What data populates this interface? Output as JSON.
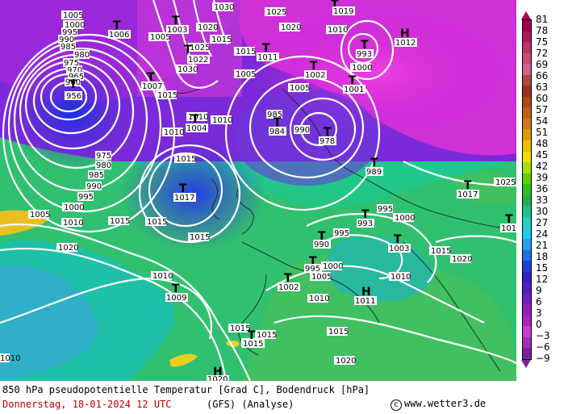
{
  "map": {
    "isobars": [
      {
        "label": "1030"
      },
      {
        "label": "1030"
      },
      {
        "label": "1025"
      },
      {
        "label": "1020"
      },
      {
        "label": "1015"
      },
      {
        "label": "1015"
      },
      {
        "label": "1010"
      },
      {
        "label": "1005"
      },
      {
        "label": "1000"
      },
      {
        "label": "995"
      },
      {
        "label": "990"
      },
      {
        "label": "985"
      },
      {
        "label": "980"
      },
      {
        "label": "975"
      },
      {
        "label": "970"
      },
      {
        "label": "965"
      },
      {
        "label": "960"
      },
      {
        "label": "1005"
      },
      {
        "label": "1000"
      },
      {
        "label": "995"
      },
      {
        "label": "990"
      },
      {
        "label": "985"
      },
      {
        "label": "980"
      },
      {
        "label": "975"
      },
      {
        "label": "1010"
      },
      {
        "label": "1015"
      },
      {
        "label": "1020"
      },
      {
        "label": "1010"
      },
      {
        "label": "1015"
      },
      {
        "label": "1015"
      },
      {
        "label": "1010"
      },
      {
        "label": "1015"
      },
      {
        "label": "1020"
      },
      {
        "label": "1025"
      },
      {
        "label": "1010"
      },
      {
        "label": "1005"
      },
      {
        "label": "1000"
      },
      {
        "label": "995"
      },
      {
        "label": "995"
      },
      {
        "label": "1000"
      },
      {
        "label": "1005"
      },
      {
        "label": "1010"
      },
      {
        "label": "1015"
      },
      {
        "label": "1020"
      },
      {
        "label": "1015"
      },
      {
        "label": "1015"
      },
      {
        "label": "1015"
      },
      {
        "label": "1010"
      },
      {
        "label": "1005"
      },
      {
        "label": "1000"
      },
      {
        "label": "985"
      },
      {
        "label": "990"
      },
      {
        "label": "1010"
      },
      {
        "label": "1015"
      },
      {
        "label": "1020"
      },
      {
        "label": "1025"
      },
      {
        "label": "1010"
      },
      {
        "label": "1015"
      },
      {
        "label": "1005"
      }
    ],
    "centers": [
      {
        "type": "T",
        "value": "956"
      },
      {
        "type": "T",
        "value": "1006"
      },
      {
        "type": "T",
        "value": "1003"
      },
      {
        "type": "T",
        "value": "1007"
      },
      {
        "type": "T",
        "value": "1011"
      },
      {
        "type": "T",
        "value": "1002"
      },
      {
        "type": "T",
        "value": "1001"
      },
      {
        "type": "T",
        "value": "993"
      },
      {
        "type": "H",
        "value": "1012"
      },
      {
        "type": "T",
        "value": "1004"
      },
      {
        "type": "T",
        "value": "984"
      },
      {
        "type": "T",
        "value": "978"
      },
      {
        "type": "T",
        "value": "989"
      },
      {
        "type": "T",
        "value": "1017"
      },
      {
        "type": "T",
        "value": "1017"
      },
      {
        "type": "T",
        "value": "993"
      },
      {
        "type": "T",
        "value": "990"
      },
      {
        "type": "T",
        "value": "1003"
      },
      {
        "type": "T",
        "value": "995"
      },
      {
        "type": "T",
        "value": "1002"
      },
      {
        "type": "H",
        "value": "1011"
      },
      {
        "type": "T",
        "value": "1009"
      },
      {
        "type": "T",
        "value": "1015"
      },
      {
        "type": "H",
        "value": "1020"
      },
      {
        "type": "T",
        "value": "1019"
      },
      {
        "type": "T",
        "value": "1022"
      },
      {
        "type": "T",
        "value": "101"
      }
    ]
  },
  "scale": {
    "labels": [
      "81",
      "78",
      "75",
      "72",
      "69",
      "66",
      "63",
      "60",
      "57",
      "54",
      "51",
      "48",
      "45",
      "42",
      "39",
      "36",
      "33",
      "30",
      "27",
      "24",
      "21",
      "18",
      "15",
      "12",
      "9",
      "6",
      "3",
      "0",
      "−3",
      "−6",
      "−9"
    ],
    "colors": [
      "#a0004a",
      "#b0185a",
      "#c0306a",
      "#c84a78",
      "#d06486",
      "#b04840",
      "#a03020",
      "#b04818",
      "#c06018",
      "#d07818",
      "#e09a10",
      "#e8c000",
      "#f0e000",
      "#a8e000",
      "#60d000",
      "#30c020",
      "#20b050",
      "#20c090",
      "#20d0c0",
      "#20c8e8",
      "#20a0f0",
      "#2070e8",
      "#2040d8",
      "#3020c8",
      "#5020c0",
      "#7020c0",
      "#9020c0",
      "#b020c0",
      "#c040c8",
      "#a030b8",
      "#7a1fa2"
    ]
  },
  "footer": {
    "title": "850 hPa pseudopotentielle Temperatur [Grad C], Bodendruck [hPa]",
    "datetime": "Donnerstag, 18-01-2024  12 UTC",
    "model": "(GFS)  (Analyse)",
    "copyright_symbol": "c",
    "website": "www.wetter3.de"
  }
}
